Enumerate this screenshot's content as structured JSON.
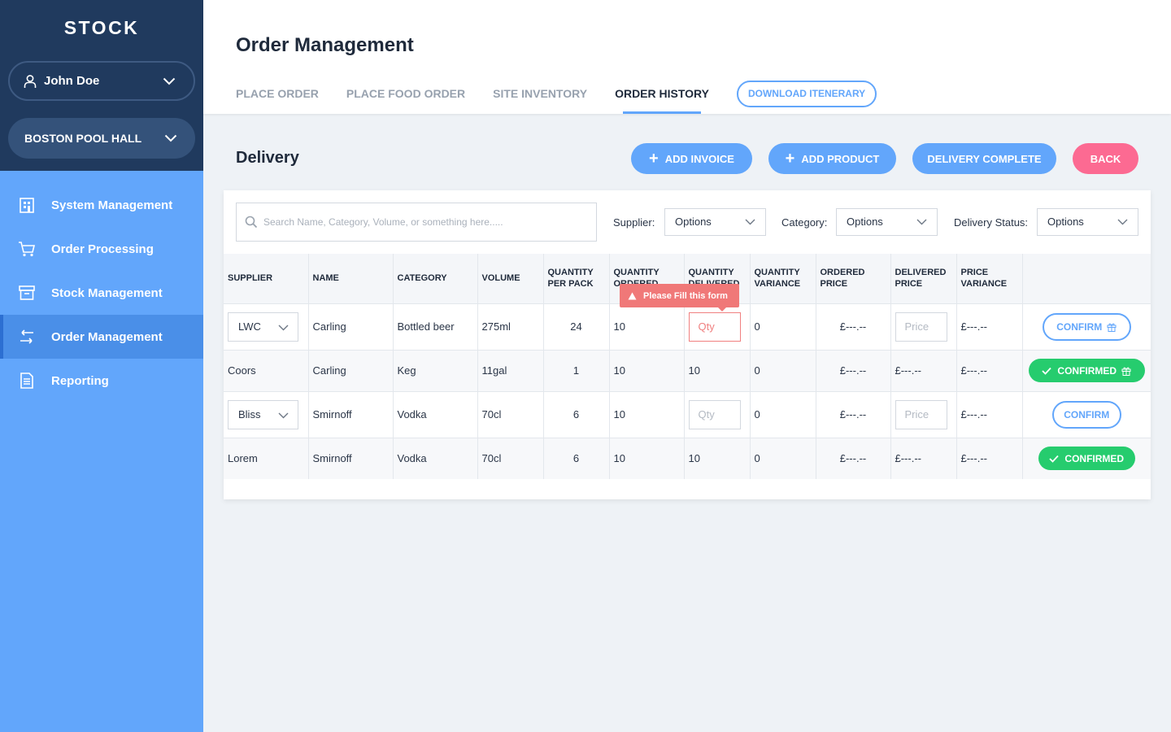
{
  "sidebar": {
    "brand": "STOCK",
    "user": "John Doe",
    "venue": "BOSTON POOL HALL",
    "items": [
      {
        "label": "System Management"
      },
      {
        "label": "Order Processing"
      },
      {
        "label": "Stock Management"
      },
      {
        "label": "Order Management"
      },
      {
        "label": "Reporting"
      }
    ]
  },
  "header": {
    "title": "Order Management",
    "tabs": [
      {
        "label": "PLACE ORDER"
      },
      {
        "label": "PLACE FOOD ORDER"
      },
      {
        "label": "SITE INVENTORY"
      },
      {
        "label": "ORDER HISTORY"
      }
    ],
    "download_label": "DOWNLOAD ITENERARY"
  },
  "section": {
    "title": "Delivery",
    "add_invoice": "ADD INVOICE",
    "add_product": "ADD PRODUCT",
    "delivery_complete": "DELIVERY COMPLETE",
    "back": "BACK"
  },
  "filters": {
    "search_placeholder": "Search Name, Category, Volume, or something here.....",
    "supplier_label": "Supplier:",
    "supplier_value": "Options",
    "category_label": "Category:",
    "category_value": "Options",
    "status_label": "Delivery Status:",
    "status_value": "Options"
  },
  "table": {
    "headers": [
      "SUPPLIER",
      "NAME",
      "CATEGORY",
      "VOLUME",
      "QUANTITY PER PACK",
      "QUANTITY ORDERED",
      "QUANTITY DELIVERED",
      "QUANTITY VARIANCE",
      "ORDERED PRICE",
      "DELIVERED PRICE",
      "PRICE VARIANCE"
    ],
    "qty_placeholder": "Qty",
    "price_placeholder": "Price",
    "confirm_label": "CONFIRM",
    "confirmed_label": "CONFIRMED",
    "rows": [
      {
        "supplier": "LWC",
        "name": "Carling",
        "category": "Bottled beer",
        "volume": "275ml",
        "per_pack": "24",
        "ordered": "10",
        "delivered": "",
        "variance": "0",
        "ordered_price": "£---.--",
        "delivered_price": "",
        "price_variance": "£---.--"
      },
      {
        "supplier": "Coors",
        "name": "Carling",
        "category": "Keg",
        "volume": "11gal",
        "per_pack": "1",
        "ordered": "10",
        "delivered": "10",
        "variance": "0",
        "ordered_price": "£---.--",
        "delivered_price": "£---.--",
        "price_variance": "£---.--"
      },
      {
        "supplier": "Bliss",
        "name": "Smirnoff",
        "category": "Vodka",
        "volume": "70cl",
        "per_pack": "6",
        "ordered": "10",
        "delivered": "",
        "variance": "0",
        "ordered_price": "£---.--",
        "delivered_price": "",
        "price_variance": "£---.--"
      },
      {
        "supplier": "Lorem",
        "name": "Smirnoff",
        "category": "Vodka",
        "volume": "70cl",
        "per_pack": "6",
        "ordered": "10",
        "delivered": "10",
        "variance": "0",
        "ordered_price": "£---.--",
        "delivered_price": "£---.--",
        "price_variance": "£---.--"
      }
    ]
  },
  "tooltip": "Please Fill this form",
  "colors": {
    "sidebar_dark": "#203a5e",
    "sidebar_light": "#62a6fb",
    "accent": "#62a6fb",
    "back": "#fc6a92",
    "confirmed": "#26cc6e",
    "error": "#f07878"
  }
}
